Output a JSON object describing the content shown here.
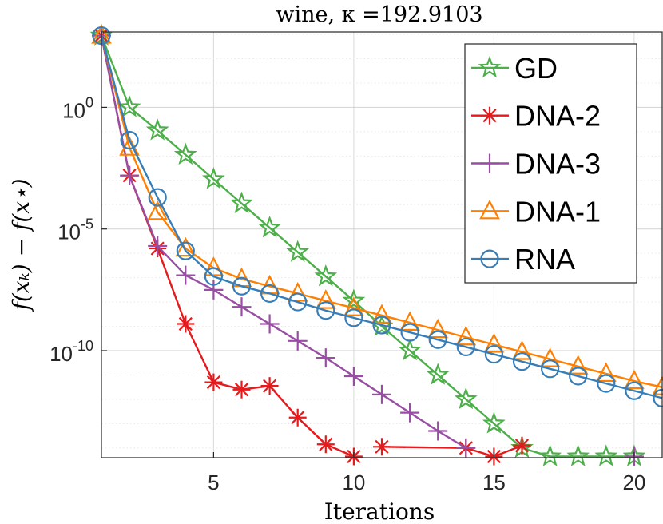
{
  "chart_data": {
    "type": "line",
    "title": "wine, κ =192.9103",
    "xlabel": "Iterations",
    "ylabel": "f(xₖ) − f(x⋆)",
    "xlim": [
      1,
      21
    ],
    "ylim_log10": [
      -14.4,
      3.1
    ],
    "xticks": [
      5,
      10,
      15,
      20
    ],
    "xtick_labels": [
      "5",
      "10",
      "15",
      "20"
    ],
    "yticks_log10": [
      0,
      -5,
      -10
    ],
    "ytick_labels": [
      {
        "base": "10",
        "exp": "0"
      },
      {
        "base": "10",
        "exp": "-5"
      },
      {
        "base": "10",
        "exp": "-10"
      }
    ],
    "grid": true,
    "legend_position": "top-right",
    "series": [
      {
        "name": "GD",
        "color": "#4daf4a",
        "marker": "pentagram",
        "x": [
          1,
          2,
          3,
          4,
          5,
          6,
          7,
          8,
          9,
          10,
          11,
          12,
          13,
          14,
          15,
          16,
          17,
          18,
          19,
          20
        ],
        "log10_y": [
          2.95,
          0.0,
          -0.95,
          -1.95,
          -2.95,
          -3.95,
          -4.95,
          -5.95,
          -6.95,
          -7.95,
          -9.0,
          -10.0,
          -11.0,
          -12.0,
          -13.0,
          -14.0,
          -14.35,
          -14.35,
          -14.35,
          -14.35
        ]
      },
      {
        "name": "DNA-2",
        "color": "#e41a1c",
        "marker": "asterisk",
        "x": [
          1,
          2,
          3,
          4,
          5,
          6,
          7,
          8,
          9,
          10,
          null,
          11,
          14,
          15,
          16
        ],
        "log10_y": [
          2.95,
          -2.8,
          -5.8,
          -8.9,
          -11.3,
          -11.6,
          -11.45,
          -12.75,
          -13.85,
          -14.35,
          null,
          -13.95,
          -14.0,
          -14.35,
          -13.9
        ]
      },
      {
        "name": "DNA-3",
        "color": "#984ea3",
        "marker": "plus",
        "x": [
          1,
          2,
          3,
          4,
          5,
          6,
          7,
          8,
          9,
          10,
          11,
          12,
          13,
          14,
          null,
          20
        ],
        "log10_y": [
          2.95,
          -2.8,
          -5.7,
          -6.9,
          -7.5,
          -8.2,
          -8.9,
          -9.6,
          -10.3,
          -11.05,
          -11.8,
          -12.55,
          -13.3,
          -14.0,
          null,
          -14.35
        ]
      },
      {
        "name": "DNA-1",
        "color": "#ff7f00",
        "marker": "triangle-up",
        "x": [
          1,
          2,
          3,
          4,
          5,
          6,
          7,
          8,
          9,
          10,
          11,
          12,
          13,
          14,
          15,
          16,
          17,
          18,
          19,
          20,
          21
        ],
        "log10_y": [
          2.95,
          -1.65,
          -4.3,
          -5.8,
          -6.6,
          -7.05,
          -7.35,
          -7.65,
          -7.95,
          -8.25,
          -8.55,
          -8.85,
          -9.15,
          -9.45,
          -9.75,
          -10.05,
          -10.35,
          -10.65,
          -10.95,
          -11.25,
          -11.5
        ]
      },
      {
        "name": "RNA",
        "color": "#377eb8",
        "marker": "circle",
        "x": [
          1,
          2,
          3,
          4,
          5,
          6,
          7,
          8,
          9,
          10,
          11,
          12,
          13,
          14,
          15,
          16,
          17,
          18,
          19,
          20,
          21
        ],
        "log10_y": [
          2.95,
          -1.35,
          -3.7,
          -5.9,
          -6.95,
          -7.35,
          -7.65,
          -8.0,
          -8.35,
          -8.65,
          -8.95,
          -9.25,
          -9.55,
          -9.85,
          -10.15,
          -10.45,
          -10.75,
          -11.05,
          -11.35,
          -11.65,
          -11.95
        ]
      }
    ]
  }
}
